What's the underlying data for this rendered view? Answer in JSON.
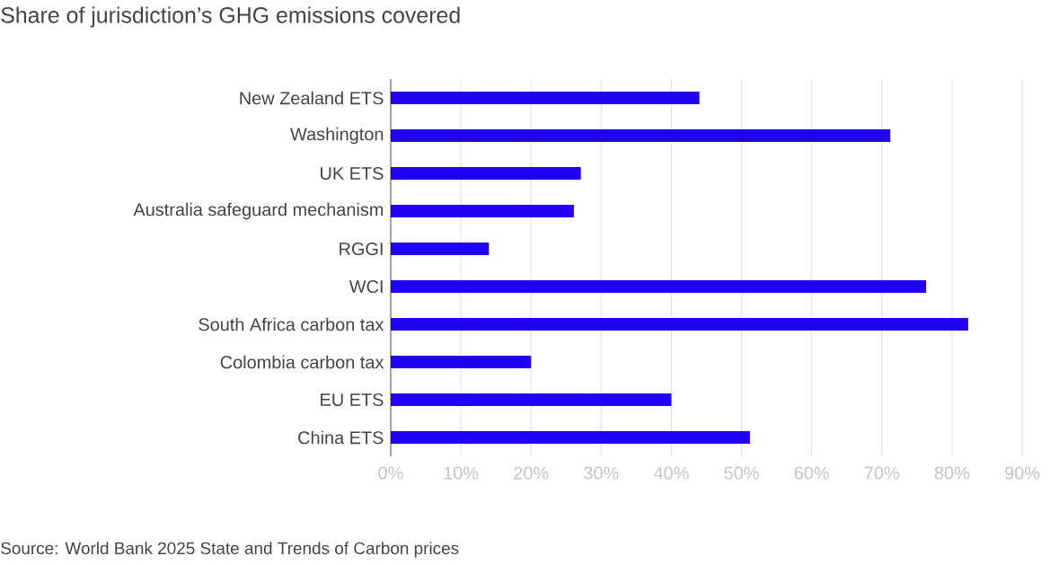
{
  "chart_data": {
    "type": "bar",
    "orientation": "horizontal",
    "title": "Share of jurisdiction’s GHG emissions covered",
    "categories": [
      "New Zealand ETS",
      "Washington",
      "UK ETS",
      "Australia safeguard mechanism",
      "RGGI",
      "WCI",
      "South Africa carbon tax",
      "Colombia carbon tax",
      "EU ETS",
      "China ETS"
    ],
    "values": [
      44.0,
      71.2,
      27.1,
      26.1,
      14.0,
      76.3,
      82.3,
      20.0,
      40.0,
      51.2
    ],
    "color": "#2200f2",
    "xlim": [
      0,
      90
    ],
    "xticks": [
      {
        "value": 0,
        "label": "0%"
      },
      {
        "value": 10,
        "label": "10%"
      },
      {
        "value": 20,
        "label": "20%"
      },
      {
        "value": 30,
        "label": "30%"
      },
      {
        "value": 40,
        "label": "40%"
      },
      {
        "value": 50,
        "label": "50%"
      },
      {
        "value": 60,
        "label": "60%"
      },
      {
        "value": 70,
        "label": "70%"
      },
      {
        "value": 80,
        "label": "80%"
      },
      {
        "value": 90,
        "label": "90%"
      }
    ],
    "grid": "x",
    "annotations": [
      "Source: World Bank 2025 State and Trends of Carbon prices"
    ]
  }
}
